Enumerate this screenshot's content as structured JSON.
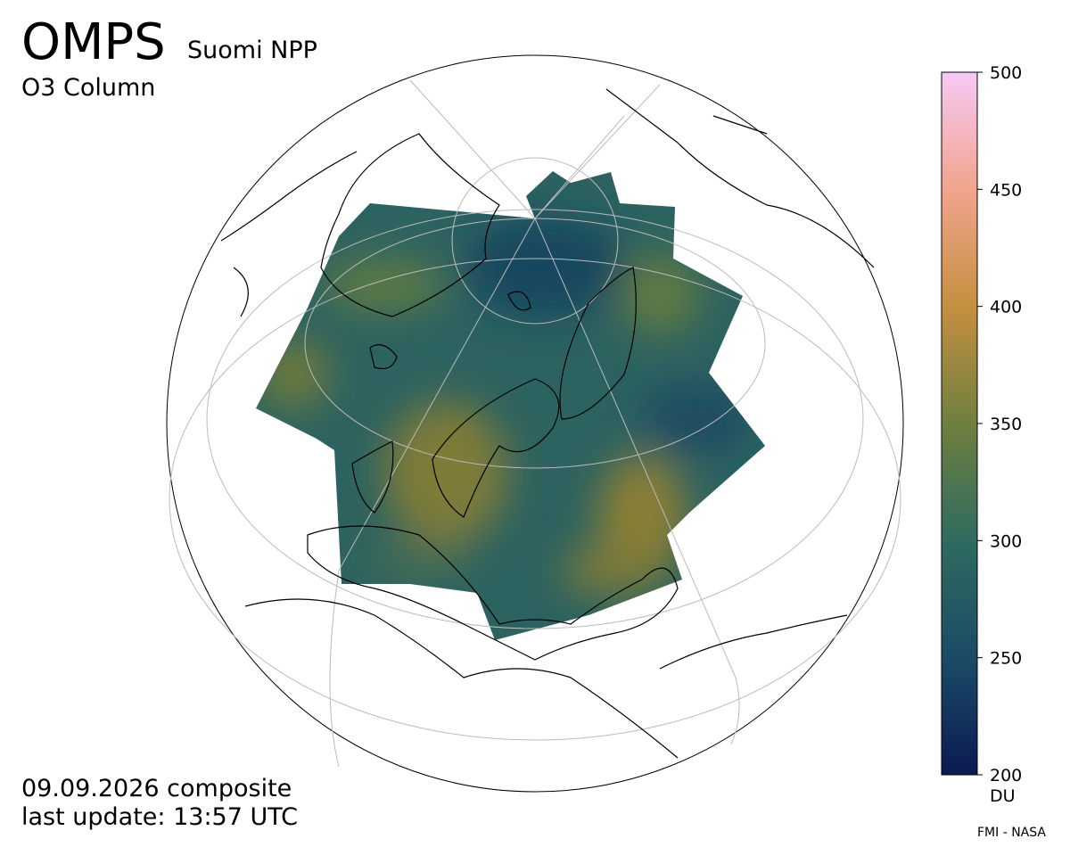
{
  "header": {
    "title": "OMPS",
    "subtitle": "Suomi NPP",
    "product": "O3 Column"
  },
  "footer": {
    "date": "09.09.2026 composite",
    "update": "last update: 13:57 UTC",
    "credit": "FMI - NASA"
  },
  "colorbar": {
    "label": "DU",
    "lim": [
      200,
      500
    ],
    "ticks": [
      200,
      250,
      300,
      350,
      400,
      450,
      500
    ],
    "colors": [
      "#0b1a52",
      "#1b4b66",
      "#2f6b5f",
      "#6f7f3e",
      "#c58f40",
      "#f2a48d",
      "#f6c9f5"
    ]
  }
}
